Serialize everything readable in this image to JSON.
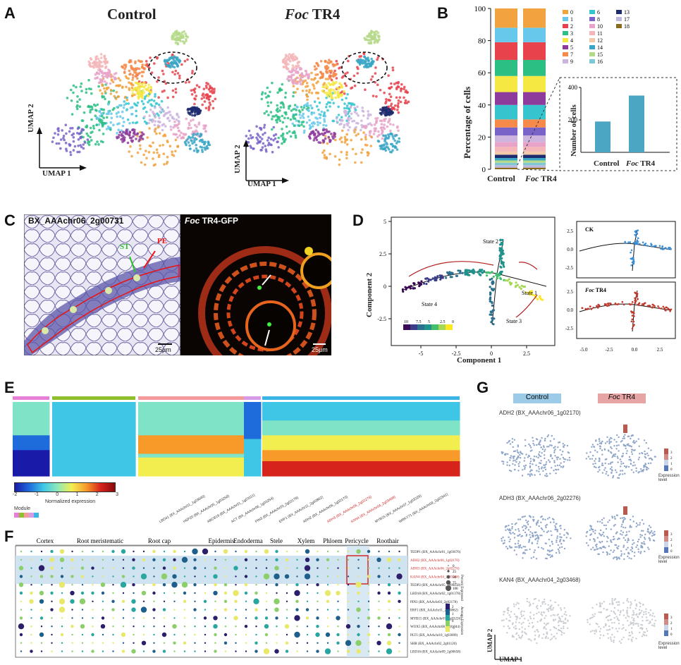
{
  "panels": {
    "A": "A",
    "B": "B",
    "C": "C",
    "D": "D",
    "E": "E",
    "F": "F",
    "G": "G"
  },
  "panel_a": {
    "control_title": "Control",
    "foc_title_italic": "Foc",
    "foc_title_rest": " TR4",
    "umap1": "UMAP 1",
    "umap2": "UMAP 2"
  },
  "panel_b": {
    "ylabel": "Percentage of cells",
    "inset_ylabel": "Number of cells",
    "legend_numbers": [
      "0",
      "1",
      "2",
      "3",
      "4",
      "5",
      "6",
      "7",
      "8",
      "9",
      "10",
      "11",
      "12",
      "13",
      "14",
      "15",
      "16",
      "17",
      "18"
    ],
    "legend_colors": [
      "#f2a23f",
      "#67c8ec",
      "#e8434c",
      "#2cbf84",
      "#f5e843",
      "#8e3c9c",
      "#36c5cf",
      "#f58a4a",
      "#7a63c8",
      "#cdb4de",
      "#e7a3c8",
      "#f4b6b9",
      "#f2c9a9",
      "#1e2b6e",
      "#3aa6c6",
      "#b5d98a",
      "#7ec7d4",
      "#bfb7dd",
      "#8a6a1e"
    ],
    "group_control": "Control",
    "group_foc_italic": "Foc",
    "group_foc_rest": " TR4"
  },
  "chart_data": [
    {
      "type": "bar",
      "title": "",
      "xlabel": "",
      "ylabel": "Percentage of cells",
      "categories": [
        "Control",
        "Foc TR4"
      ],
      "ylim": [
        0,
        100
      ],
      "yticks": [
        "0",
        "20",
        "40",
        "60",
        "80",
        "100"
      ],
      "series": [
        {
          "name": "0",
          "values": [
            12,
            12
          ]
        },
        {
          "name": "1",
          "values": [
            9,
            9
          ]
        },
        {
          "name": "2",
          "values": [
            11,
            11
          ]
        },
        {
          "name": "3",
          "values": [
            10,
            10
          ]
        },
        {
          "name": "4",
          "values": [
            10,
            10
          ]
        },
        {
          "name": "5",
          "values": [
            8,
            8
          ]
        },
        {
          "name": "6",
          "values": [
            9,
            9
          ]
        },
        {
          "name": "7",
          "values": [
            5,
            5
          ]
        },
        {
          "name": "8",
          "values": [
            5,
            5
          ]
        },
        {
          "name": "9",
          "values": [
            4,
            4
          ]
        },
        {
          "name": "10",
          "values": [
            3,
            3
          ]
        },
        {
          "name": "11",
          "values": [
            3,
            3
          ]
        },
        {
          "name": "12",
          "values": [
            2,
            2
          ]
        },
        {
          "name": "13",
          "values": [
            2,
            2
          ]
        },
        {
          "name": "14",
          "values": [
            1.5,
            1.5
          ]
        },
        {
          "name": "15",
          "values": [
            1.5,
            1.5
          ]
        },
        {
          "name": "16",
          "values": [
            1.5,
            1.5
          ]
        },
        {
          "name": "17",
          "values": [
            1.5,
            1.5
          ]
        },
        {
          "name": "18",
          "values": [
            1,
            1
          ]
        }
      ]
    },
    {
      "type": "bar",
      "title": "",
      "xlabel": "",
      "ylabel": "Number of cells",
      "categories": [
        "Control",
        "Foc TR4"
      ],
      "values": [
        190,
        350
      ],
      "ylim": [
        0,
        400
      ],
      "yticks": [
        "200",
        "400"
      ],
      "color": "#4ba6c4"
    }
  ],
  "panel_c": {
    "left_label": "BX_AAAchr06_2g00731",
    "right_label_italic": "Foc",
    "right_label_rest": " TR4-GFP",
    "st": "ST",
    "pe": "PE",
    "scale_left": "25μm",
    "scale_right": "25μm"
  },
  "panel_d": {
    "xlabel": "Component 1",
    "ylabel": "Component 2",
    "state1": "State 1",
    "state2": "State 2",
    "state3": "State 3",
    "state4": "State 4",
    "ck": "CK",
    "foc_italic": "Foc",
    "foc_rest": " TR4",
    "main_xticks": [
      "-5",
      "-2.5",
      "0",
      "2.5"
    ],
    "main_yticks": [
      "5",
      "2.5",
      "0",
      "-2.5"
    ],
    "cbar_ticks": [
      "10",
      "7.5",
      "5",
      "2.5",
      "0"
    ],
    "small_xticks": [
      "-5.0",
      "-2.5",
      "0.0",
      "2.5"
    ],
    "small_yticks": [
      "2.5",
      "0.0",
      "-2.5"
    ]
  },
  "panel_e": {
    "colorbar_ticks": [
      "-2",
      "-1",
      "0",
      "1",
      "2",
      "3"
    ],
    "colorbar_label": "Normalized expression",
    "module_label": "Module",
    "gene_labels": [
      "LBD41 (BX_AAAchr01_1g03640)",
      "HSP20 (BX_AAAchr05_1g03258)",
      "ABCB19 (BX_AAAchr01_1g03111)",
      "ACT (BX_AAAchr06_1g03254)",
      "PIN3 (BX_AAAchr03_2g02178)",
      "ERF1 (BX_AAAchr11_2g00862)",
      "ADH2 (BX_AAAchr06_1g02170)",
      "ADH3 (BX_AAAchr06_2g02276)",
      "KAN4 (BX_AAAchr04_2g03468)",
      "MYB15 (BX_AAAchr07_1g03226)",
      "WRKY71 (BX_AAAchr09_2g02341)"
    ]
  },
  "panel_f": {
    "categories": [
      "Cortex",
      "Root meristematic",
      "Root cap",
      "Epidermis",
      "Endoderma",
      "Stele",
      "Xylem",
      "Phloem",
      "Pericycle",
      "Roothair"
    ],
    "gene_labels": [
      "TEDP1 (BX_AAAchr01_1g03676)",
      "ADH2 (BX_AAAchr06_1g02170)",
      "ADH3 (BX_AAAchr06_2g02276)",
      "KAN4 (BX_AAAchr04_2g03468)",
      "TEDP2 (BX_AAAchr05_1g00458)",
      "LBD18 (BX_AAAchr02_1g01378)",
      "PIN3 (BX_AAAchr03_2g02178)",
      "ERF1 (BX_AAAchr11_2g00862)",
      "MYB15 (BX_AAAchr07_1g03226)",
      "WOX5 (BX_AAAchr08_2g01044)",
      "PLT1 (BX_AAAchr10_1g03009)",
      "SHR (BX_AAAchr02_2g01120)",
      "LBD16 (BX_AAAchr09_2g00658)"
    ],
    "size_legend_title": "Percent Expressed",
    "size_legend_values": [
      "0",
      "25",
      "50",
      "75",
      "100"
    ],
    "color_legend_title": "Average Expression",
    "color_ticks": [
      "2",
      "1",
      "0",
      "-1"
    ]
  },
  "panel_g": {
    "control": "Control",
    "foc_italic": "Foc",
    "foc_rest": " TR4",
    "gene1": "ADH2 (BX_AAAchr06_1g02170)",
    "gene2": "ADH3 (BX_AAAchr06_2g02276)",
    "gene3": "KAN4 (BX_AAAchr04_2g03468)",
    "legend_label": "Expression level",
    "legend_ticks": [
      "3",
      "2",
      "1",
      "0"
    ],
    "umap1": "UMAP 1",
    "umap2": "UMAP 2",
    "control_bg": "#9ccbe8",
    "foc_bg": "#e7a4a4"
  }
}
